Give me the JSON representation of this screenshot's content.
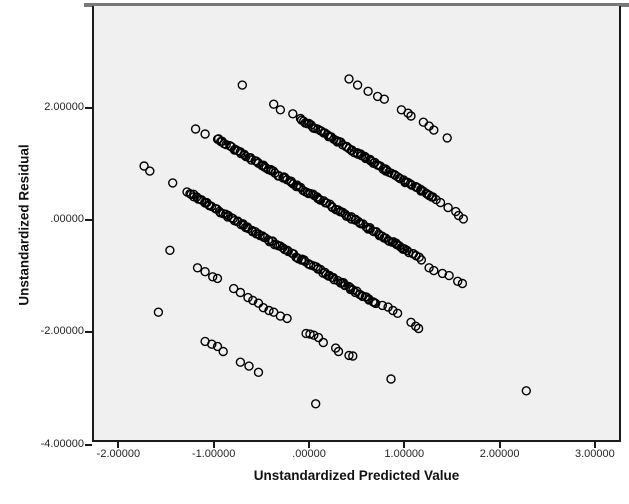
{
  "figure": {
    "background": "#ffffff",
    "plot_background": "#f0f0f0",
    "frame_top_color": "#787878",
    "axis_color": "#1a1a1a",
    "tick_label_color": "#262626"
  },
  "chart_data": {
    "type": "scatter",
    "title": "",
    "xlabel": "Unstandardized Predicted Value",
    "ylabel": "Unstandardized Residual",
    "x_range": [
      -2.28,
      3.27
    ],
    "y_range": [
      -4.05,
      3.7
    ],
    "grid": "off",
    "legend": "none",
    "marker": {
      "shape": "open-circle",
      "radius_px": 4,
      "stroke": "#000000"
    },
    "pattern_note": "Residuals fall on parallel diagonal bands with slope -1 (y = c - x), typical of a discrete outcome variable",
    "x_ticks": [
      {
        "v": -2,
        "label": "-2.00000"
      },
      {
        "v": -1,
        "label": "-1.00000"
      },
      {
        "v": 0,
        "label": ".00000"
      },
      {
        "v": 1,
        "label": "1.00000"
      },
      {
        "v": 2,
        "label": "2.00000"
      },
      {
        "v": 3,
        "label": "3.00000"
      }
    ],
    "y_ticks": [
      {
        "v": 2,
        "label": "2.00000"
      },
      {
        "v": 0,
        "label": ".00000"
      },
      {
        "v": -2,
        "label": "-2.00000"
      },
      {
        "v": -4,
        "label": "-4.00000"
      }
    ],
    "bands": [
      {
        "c": 2.92,
        "slope": -1,
        "points": [
          [
            0.42,
            2.51
          ],
          [
            0.51,
            2.4
          ],
          [
            0.62,
            2.29
          ],
          [
            0.72,
            2.2
          ],
          [
            0.79,
            2.15
          ],
          [
            0.97,
            1.96
          ],
          [
            1.04,
            1.9
          ],
          [
            1.07,
            1.85
          ],
          [
            1.2,
            1.74
          ],
          [
            1.26,
            1.67
          ],
          [
            1.31,
            1.6
          ],
          [
            1.45,
            1.46
          ]
        ]
      },
      {
        "c": 1.7,
        "slope": -1,
        "points": [
          [
            -0.7,
            2.4
          ],
          [
            -0.37,
            2.06
          ],
          [
            -0.3,
            1.96
          ],
          [
            -0.17,
            1.89
          ],
          [
            1.38,
            0.31
          ],
          [
            1.46,
            0.22
          ],
          [
            1.54,
            0.15
          ],
          [
            1.57,
            0.08
          ],
          [
            1.62,
            0.02
          ]
        ],
        "dense": {
          "x_start": -0.09,
          "x_end": 1.33,
          "count": 78
        }
      },
      {
        "c": 0.48,
        "slope": -1,
        "points": [
          [
            -1.19,
            1.62
          ],
          [
            -1.09,
            1.53
          ],
          [
            1.26,
            -0.85
          ],
          [
            1.31,
            -0.9
          ],
          [
            1.4,
            -0.95
          ],
          [
            1.47,
            -0.99
          ],
          [
            1.56,
            -1.09
          ],
          [
            1.61,
            -1.13
          ]
        ],
        "dense": {
          "x_start": -0.96,
          "x_end": 1.17,
          "count": 112
        }
      },
      {
        "c": -0.78,
        "slope": -1,
        "points": [
          [
            -1.73,
            0.96
          ],
          [
            -1.67,
            0.87
          ],
          [
            -1.43,
            0.66
          ],
          [
            0.77,
            -1.52
          ],
          [
            0.83,
            -1.55
          ],
          [
            0.88,
            -1.61
          ],
          [
            0.93,
            -1.66
          ],
          [
            1.07,
            -1.82
          ],
          [
            1.12,
            -1.89
          ],
          [
            1.15,
            -1.93
          ]
        ],
        "dense": {
          "x_start": -1.28,
          "x_end": 0.7,
          "count": 104
        }
      },
      {
        "c": -2.0,
        "slope": -1,
        "points": [
          [
            -1.46,
            -0.54
          ],
          [
            -1.17,
            -0.85
          ],
          [
            -1.09,
            -0.92
          ],
          [
            -1.01,
            -1.01
          ],
          [
            -0.96,
            -1.04
          ],
          [
            -0.79,
            -1.22
          ],
          [
            -0.72,
            -1.29
          ],
          [
            -0.64,
            -1.38
          ],
          [
            -0.59,
            -1.43
          ],
          [
            -0.53,
            -1.48
          ],
          [
            -0.48,
            -1.56
          ],
          [
            -0.42,
            -1.61
          ],
          [
            -0.37,
            -1.64
          ],
          [
            -0.3,
            -1.71
          ],
          [
            -0.23,
            -1.75
          ],
          [
            -0.03,
            -2.02
          ],
          [
            0.01,
            -2.03
          ],
          [
            0.05,
            -2.05
          ],
          [
            0.1,
            -2.09
          ],
          [
            0.15,
            -2.18
          ],
          [
            0.28,
            -2.28
          ],
          [
            0.31,
            -2.34
          ],
          [
            0.42,
            -2.41
          ],
          [
            0.46,
            -2.42
          ],
          [
            0.86,
            -2.83
          ]
        ]
      },
      {
        "c": -3.22,
        "slope": -1,
        "points": [
          [
            -1.58,
            -1.64
          ],
          [
            -1.09,
            -2.16
          ],
          [
            -1.02,
            -2.21
          ],
          [
            -0.96,
            -2.25
          ],
          [
            -0.9,
            -2.34
          ],
          [
            -0.72,
            -2.53
          ],
          [
            -0.63,
            -2.6
          ],
          [
            -0.53,
            -2.71
          ],
          [
            0.07,
            -3.27
          ]
        ]
      }
    ],
    "outlier_points": [
      [
        2.28,
        -3.04
      ]
    ]
  }
}
